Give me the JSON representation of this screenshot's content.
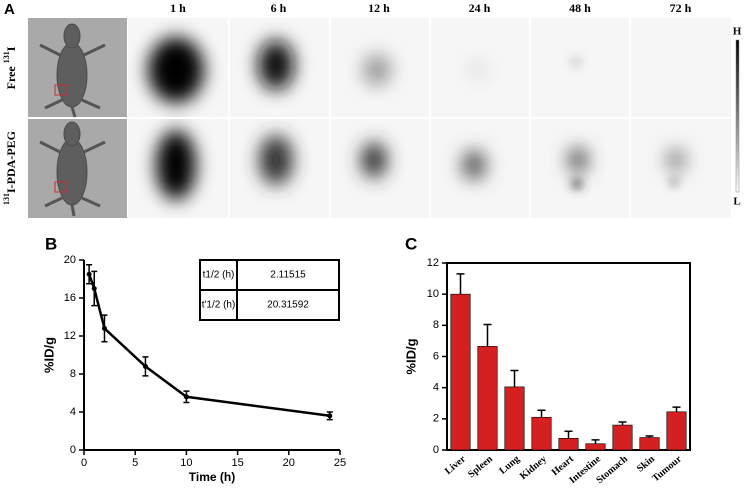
{
  "panel_a": {
    "label": "A",
    "times": [
      "1 h",
      "6 h",
      "12 h",
      "24 h",
      "48 h",
      "72 h"
    ],
    "rows": [
      [
        {
          "text": "Free "
        },
        {
          "sup": "131"
        },
        {
          "text": "I"
        }
      ],
      [
        {
          "sup": "131"
        },
        {
          "text": "I-PDA-PEG"
        }
      ]
    ],
    "scale_high": "H",
    "scale_low": "L"
  },
  "chart_data": [
    {
      "type": "line",
      "label": "B",
      "x_label": "Time (h)",
      "y_label": "%ID/g",
      "x": [
        0.5,
        1,
        2,
        6,
        10,
        24
      ],
      "series": [
        {
          "color": "#000000",
          "values": [
            18.5,
            17.0,
            12.8,
            8.8,
            5.6,
            3.6
          ],
          "errors": [
            1.0,
            1.8,
            1.4,
            1.0,
            0.6,
            0.4
          ]
        }
      ],
      "xlim": [
        0,
        25
      ],
      "xticks": [
        0,
        5,
        10,
        15,
        20,
        25
      ],
      "ylim": [
        0,
        20
      ],
      "yticks": [
        0,
        4,
        8,
        12,
        16,
        20
      ],
      "table": [
        [
          "t1/2 (h)",
          "2.11515"
        ],
        [
          "t'1/2 (h)",
          "20.31592"
        ]
      ]
    },
    {
      "type": "bar",
      "label": "C",
      "y_label": "%ID/g",
      "categories": [
        "Liver",
        "Spleen",
        "Lung",
        "Kidney",
        "Heart",
        "Intestine",
        "Stomach",
        "Skin",
        "Tumour"
      ],
      "series": [
        {
          "color": "#d42020",
          "values": [
            10.0,
            6.65,
            4.05,
            2.1,
            0.75,
            0.4,
            1.6,
            0.8,
            2.45
          ],
          "errors": [
            1.3,
            1.4,
            1.05,
            0.45,
            0.45,
            0.25,
            0.2,
            0.1,
            0.3
          ]
        }
      ],
      "ylim": [
        0,
        12
      ],
      "yticks": [
        0,
        2,
        4,
        6,
        8,
        10,
        12
      ]
    }
  ]
}
